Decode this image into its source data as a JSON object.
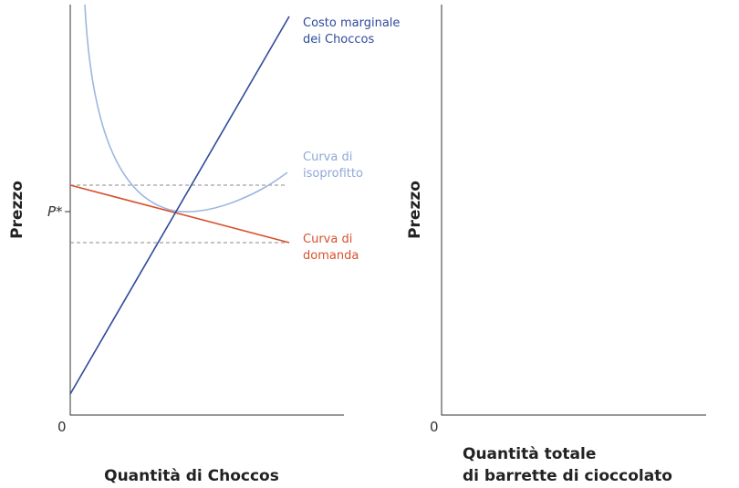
{
  "left_panel": {
    "y_label": "Prezzo",
    "x_label": "Quantità di Choccos",
    "origin": "0",
    "price_marker": "P*",
    "marginal_cost_label": [
      "Costo marginale",
      "dei Choccos"
    ],
    "isoprofit_label": [
      "Curva di",
      "isoprofitto"
    ],
    "demand_label": [
      "Curva di",
      "domanda"
    ]
  },
  "right_panel": {
    "y_label": "Prezzo",
    "x_label": [
      "Quantità totale",
      "di barrette di cioccolato"
    ],
    "origin": "0"
  }
}
